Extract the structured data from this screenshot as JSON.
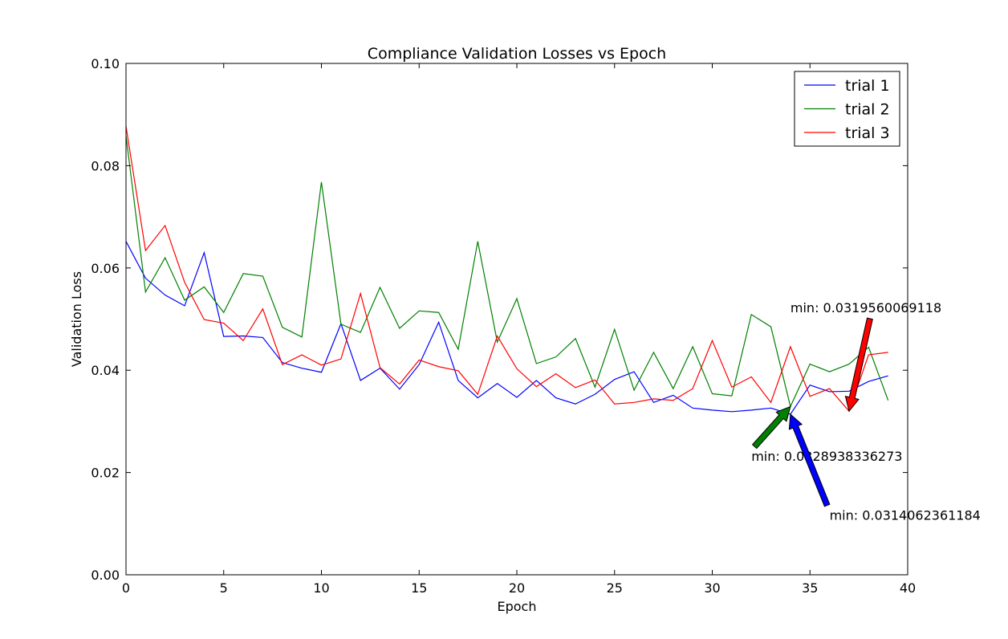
{
  "chart_data": {
    "type": "line",
    "title": "Compliance Validation Losses vs Epoch",
    "xlabel": "Epoch",
    "ylabel": "Validation Loss",
    "xlim": [
      0,
      40
    ],
    "ylim": [
      0.0,
      0.1
    ],
    "x_ticks": [
      0,
      5,
      10,
      15,
      20,
      25,
      30,
      35,
      40
    ],
    "y_ticks": [
      0.0,
      0.02,
      0.04,
      0.06,
      0.08,
      0.1
    ],
    "y_tick_labels": [
      "0.00",
      "0.02",
      "0.04",
      "0.06",
      "0.08",
      "0.10"
    ],
    "grid": false,
    "legend_position": "top-right",
    "x": [
      0,
      1,
      2,
      3,
      4,
      5,
      6,
      7,
      8,
      9,
      10,
      11,
      12,
      13,
      14,
      15,
      16,
      17,
      18,
      19,
      20,
      21,
      22,
      23,
      24,
      25,
      26,
      27,
      28,
      29,
      30,
      31,
      32,
      33,
      34,
      35,
      36,
      37,
      38,
      39
    ],
    "series": [
      {
        "name": "trial 1",
        "color": "#0000ff",
        "values": [
          0.0652,
          0.058,
          0.0547,
          0.0526,
          0.063,
          0.0466,
          0.0467,
          0.0464,
          0.0415,
          0.0404,
          0.0396,
          0.0491,
          0.038,
          0.0404,
          0.0363,
          0.0411,
          0.0494,
          0.038,
          0.0346,
          0.0374,
          0.0347,
          0.038,
          0.0346,
          0.0334,
          0.0353,
          0.0382,
          0.0397,
          0.0337,
          0.0351,
          0.0326,
          0.0322,
          0.0319,
          0.0322,
          0.0326,
          0.0314,
          0.0371,
          0.0358,
          0.0359,
          0.0378,
          0.0389
        ]
      },
      {
        "name": "trial 2",
        "color": "#008000",
        "values": [
          0.0858,
          0.0553,
          0.062,
          0.0537,
          0.0563,
          0.0513,
          0.0589,
          0.0584,
          0.0484,
          0.0465,
          0.0768,
          0.049,
          0.0474,
          0.0562,
          0.0482,
          0.0516,
          0.0513,
          0.0441,
          0.0652,
          0.0455,
          0.054,
          0.0413,
          0.0426,
          0.0462,
          0.0367,
          0.048,
          0.0361,
          0.0435,
          0.0364,
          0.0446,
          0.0354,
          0.035,
          0.0509,
          0.0485,
          0.0329,
          0.0412,
          0.0397,
          0.0412,
          0.0445,
          0.0341
        ]
      },
      {
        "name": "trial 3",
        "color": "#ff0000",
        "values": [
          0.0877,
          0.0634,
          0.0683,
          0.0572,
          0.0499,
          0.0492,
          0.0458,
          0.052,
          0.0411,
          0.043,
          0.041,
          0.0422,
          0.055,
          0.0405,
          0.0373,
          0.042,
          0.0407,
          0.0399,
          0.0353,
          0.0467,
          0.0403,
          0.0368,
          0.0393,
          0.0366,
          0.0381,
          0.0334,
          0.0337,
          0.0344,
          0.0341,
          0.0364,
          0.0458,
          0.0367,
          0.0387,
          0.0337,
          0.0446,
          0.0349,
          0.0364,
          0.032,
          0.043,
          0.0435
        ]
      }
    ],
    "annotations": [
      {
        "text": "min: 0.0319560069118",
        "color": "#ff0000",
        "point": [
          37,
          0.032
        ],
        "text_pos": [
          34,
          0.0523
        ]
      },
      {
        "text": "min: 0.0328938336273",
        "color": "#008000",
        "point": [
          34,
          0.0329
        ],
        "text_pos": [
          32,
          0.0232
        ]
      },
      {
        "text": "min: 0.0314062361184",
        "color": "#0000ff",
        "point": [
          34,
          0.0314
        ],
        "text_pos": [
          36,
          0.0117
        ]
      }
    ]
  }
}
